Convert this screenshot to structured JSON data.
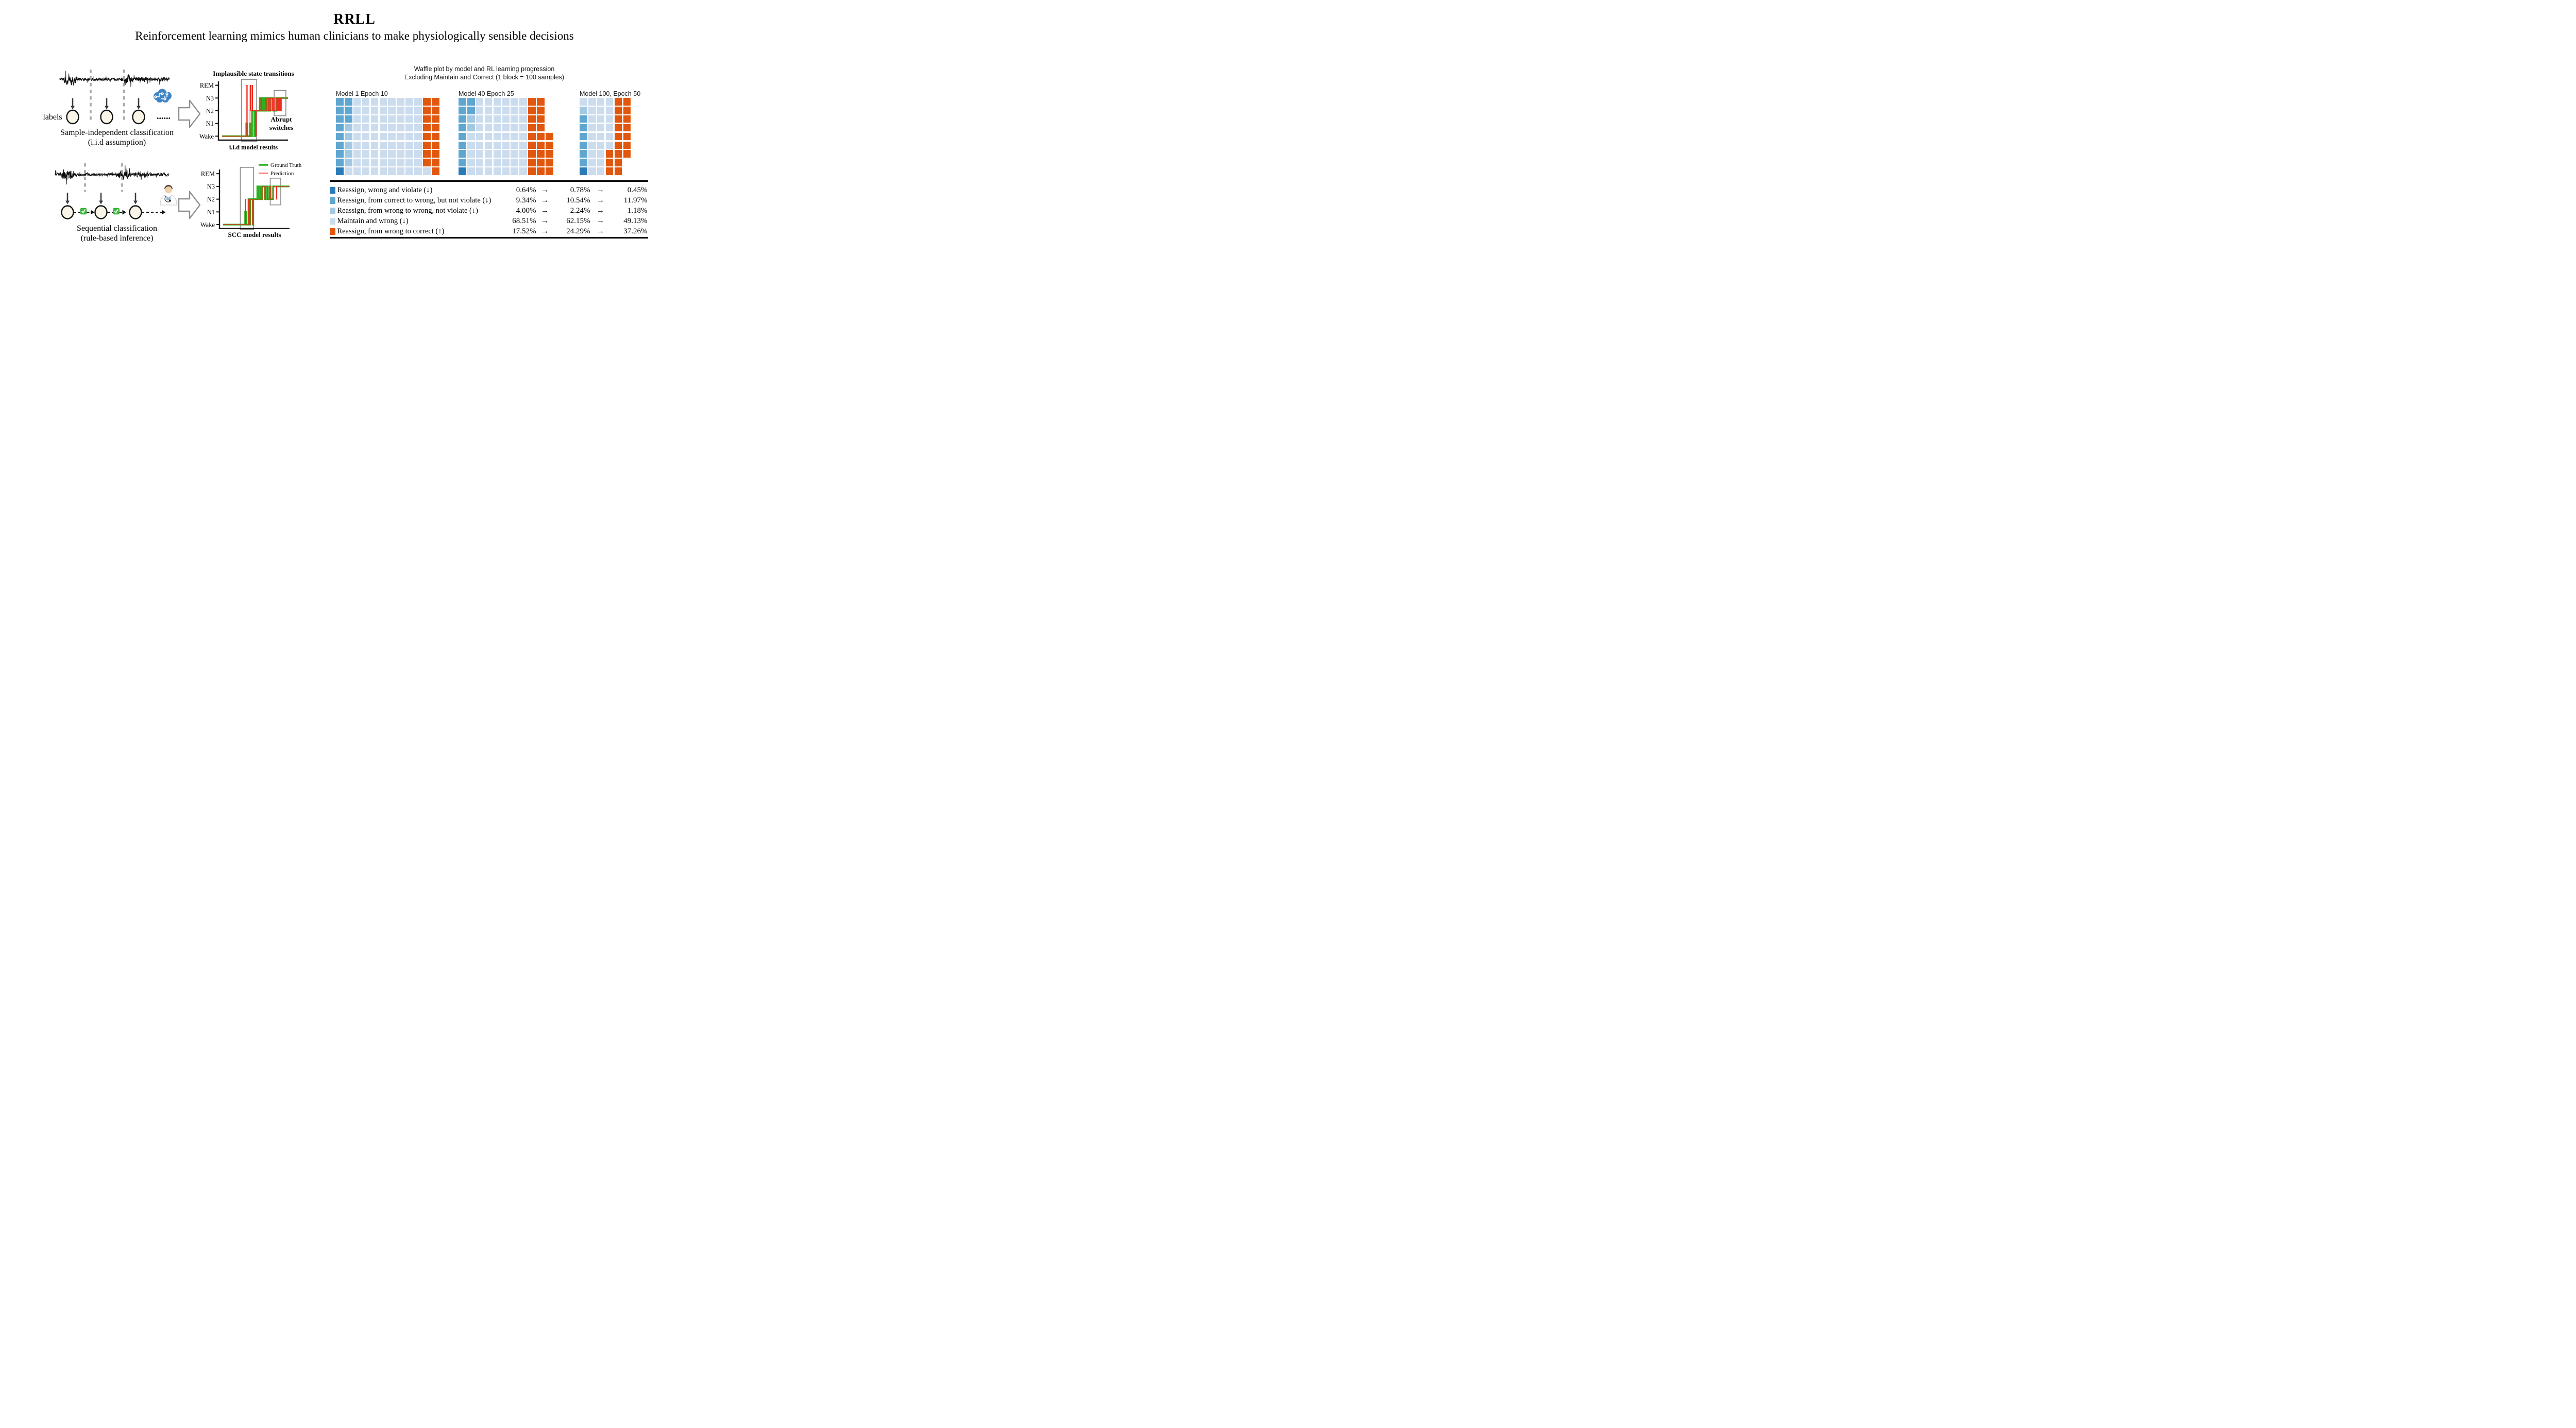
{
  "header": {
    "title": "RRLL",
    "subtitle": "Reinforcement learning mimics human clinicians to make physiologically sensible decisions"
  },
  "pipeline": {
    "iid": {
      "labels_text": "labels",
      "ellipsis": "......",
      "caption": [
        "Sample-independent classification",
        "(i.i.d assumption)"
      ]
    },
    "scc": {
      "caption": [
        "Sequential classification",
        "(rule-based inference)"
      ]
    },
    "eeg": [
      {
        "id": "eeg-iid",
        "seed": 7,
        "bursts": [
          {
            "from": 0.04,
            "to": 0.17,
            "amp": 3.4
          },
          {
            "from": 0.56,
            "to": 0.67,
            "amp": 2.9
          },
          {
            "from": 0.67,
            "to": 0.82,
            "amp": 2.0
          },
          {
            "from": 0.82,
            "to": 1.0,
            "amp": 1.5
          }
        ]
      },
      {
        "id": "eeg-scc",
        "seed": 13,
        "bursts": [
          {
            "from": 0.04,
            "to": 0.16,
            "amp": 3.4
          },
          {
            "from": 0.54,
            "to": 0.67,
            "amp": 2.8
          },
          {
            "from": 0.67,
            "to": 0.84,
            "amp": 1.7
          }
        ]
      }
    ]
  },
  "chart_data": [
    {
      "type": "line",
      "id": "hypno-iid",
      "title": "Implausible state transitions",
      "xlabel": "i.i.d model results",
      "annotation": [
        "Abrupt",
        "switches"
      ],
      "stages": [
        "Wake",
        "N1",
        "N2",
        "N3",
        "REM"
      ],
      "grid": false,
      "series": [
        {
          "name": "Ground Truth",
          "color": "#2cb01e",
          "width": 3.2,
          "points": [
            [
              0,
              0
            ],
            [
              36.7,
              0
            ],
            [
              36.7,
              1
            ],
            [
              38.4,
              1
            ],
            [
              38.4,
              0
            ],
            [
              42.3,
              0
            ],
            [
              42.3,
              1
            ],
            [
              43.9,
              1
            ],
            [
              43.9,
              0
            ],
            [
              45.5,
              0
            ],
            [
              45.5,
              2
            ],
            [
              48.8,
              2
            ],
            [
              48.8,
              0
            ],
            [
              50.3,
              0
            ],
            [
              50.3,
              2
            ],
            [
              57.3,
              2
            ],
            [
              57.3,
              3
            ],
            [
              59.2,
              3
            ],
            [
              59.2,
              2
            ],
            [
              60.2,
              2
            ],
            [
              60.2,
              3
            ],
            [
              61.2,
              3
            ],
            [
              61.2,
              2
            ],
            [
              62,
              2
            ],
            [
              62,
              3
            ],
            [
              64.8,
              3
            ],
            [
              64.8,
              2
            ],
            [
              65.6,
              2
            ],
            [
              65.6,
              3
            ],
            [
              66.5,
              3
            ],
            [
              66.5,
              2
            ],
            [
              67.3,
              2
            ],
            [
              67.3,
              3
            ],
            [
              70,
              3
            ],
            [
              70,
              2
            ],
            [
              71,
              2
            ],
            [
              71,
              3
            ],
            [
              72.2,
              3
            ],
            [
              72.2,
              2
            ],
            [
              73,
              2
            ],
            [
              73,
              3
            ],
            [
              77.7,
              3
            ],
            [
              77.7,
              2
            ],
            [
              82,
              2
            ],
            [
              82,
              3
            ],
            [
              100,
              3
            ]
          ]
        },
        {
          "name": "Prediction",
          "color": "#f02e20",
          "width": 1.3,
          "points": [
            [
              0,
              0
            ],
            [
              36.8,
              0
            ],
            [
              36.8,
              4
            ],
            [
              38.3,
              4
            ],
            [
              38.3,
              0
            ],
            [
              42.4,
              0
            ],
            [
              42.4,
              4
            ],
            [
              43.4,
              4
            ],
            [
              43.4,
              2
            ],
            [
              45.4,
              2
            ],
            [
              45.4,
              4
            ],
            [
              46.4,
              4
            ],
            [
              46.4,
              2
            ],
            [
              50.7,
              2
            ],
            [
              50.7,
              0
            ],
            [
              51.8,
              0
            ],
            [
              51.8,
              2
            ],
            [
              58.8,
              2
            ],
            [
              58.8,
              3
            ],
            [
              60,
              3
            ],
            [
              60,
              2
            ],
            [
              65.8,
              2
            ],
            [
              65.8,
              3
            ],
            [
              67,
              3
            ],
            [
              67,
              2
            ],
            [
              70.3,
              2
            ],
            [
              70.3,
              3
            ],
            [
              71.3,
              3
            ],
            [
              71.3,
              2
            ],
            [
              73.6,
              2
            ],
            [
              73.6,
              3
            ],
            [
              74.6,
              3
            ],
            [
              74.6,
              2
            ],
            [
              76.4,
              2
            ],
            [
              76.4,
              3
            ],
            [
              77.4,
              3
            ],
            [
              77.4,
              2
            ],
            [
              79.5,
              2
            ],
            [
              79.5,
              3
            ],
            [
              82.8,
              3
            ],
            [
              82.8,
              2
            ],
            [
              83.6,
              2
            ],
            [
              83.6,
              3
            ],
            [
              84.4,
              3
            ],
            [
              84.4,
              2
            ],
            [
              85.2,
              2
            ],
            [
              85.2,
              3
            ],
            [
              86,
              3
            ],
            [
              86,
              2
            ],
            [
              86.8,
              2
            ],
            [
              86.8,
              3
            ],
            [
              87.6,
              3
            ],
            [
              87.6,
              2
            ],
            [
              88.4,
              2
            ],
            [
              88.4,
              3
            ],
            [
              89.2,
              3
            ],
            [
              89.2,
              2
            ],
            [
              90,
              2
            ],
            [
              90,
              3
            ],
            [
              100,
              3
            ]
          ]
        }
      ],
      "highlight_boxes": [
        {
          "x0": 29.5,
          "x1": 52.5,
          "lv0": -0.4,
          "lv1": 4.45
        },
        {
          "x0": 79.0,
          "x1": 96.8,
          "lv0": 1.6,
          "lv1": 3.6
        }
      ]
    },
    {
      "type": "line",
      "id": "hypno-scc",
      "title": "",
      "xlabel": "SCC model results",
      "stages": [
        "Wake",
        "N1",
        "N2",
        "N3",
        "REM"
      ],
      "grid": false,
      "legend_position": "upper-right",
      "series": [
        {
          "name": "Ground Truth",
          "color": "#2cb01e",
          "width": 3.2,
          "points": [
            [
              0,
              0
            ],
            [
              33.2,
              0
            ],
            [
              33.2,
              1
            ],
            [
              34.6,
              1
            ],
            [
              34.6,
              0
            ],
            [
              38.2,
              0
            ],
            [
              38.2,
              2
            ],
            [
              39.6,
              2
            ],
            [
              39.6,
              0
            ],
            [
              40.6,
              0
            ],
            [
              40.6,
              2
            ],
            [
              44.4,
              2
            ],
            [
              44.4,
              0
            ],
            [
              45.4,
              0
            ],
            [
              45.4,
              2
            ],
            [
              51.5,
              2
            ],
            [
              51.5,
              3
            ],
            [
              53,
              3
            ],
            [
              53,
              2
            ],
            [
              53.8,
              2
            ],
            [
              53.8,
              3
            ],
            [
              56.5,
              3
            ],
            [
              56.5,
              2
            ],
            [
              57.3,
              2
            ],
            [
              57.3,
              3
            ],
            [
              58.2,
              3
            ],
            [
              58.2,
              2
            ],
            [
              59,
              2
            ],
            [
              59,
              3
            ],
            [
              62.8,
              3
            ],
            [
              62.8,
              2
            ],
            [
              63.6,
              2
            ],
            [
              63.6,
              3
            ],
            [
              66.4,
              3
            ],
            [
              66.4,
              2
            ],
            [
              69.4,
              2
            ],
            [
              69.4,
              3
            ],
            [
              71.5,
              3
            ],
            [
              71.5,
              2
            ],
            [
              75.2,
              2
            ],
            [
              75.2,
              3
            ],
            [
              100,
              3
            ]
          ]
        },
        {
          "name": "Prediction",
          "color": "#f02e20",
          "width": 1.3,
          "points": [
            [
              0,
              0
            ],
            [
              33.2,
              0
            ],
            [
              33.2,
              2
            ],
            [
              34.2,
              2
            ],
            [
              34.2,
              0
            ],
            [
              38.2,
              0
            ],
            [
              38.2,
              2
            ],
            [
              39.6,
              2
            ],
            [
              39.6,
              0
            ],
            [
              40.6,
              0
            ],
            [
              40.6,
              2
            ],
            [
              44.4,
              2
            ],
            [
              44.4,
              0
            ],
            [
              45.4,
              0
            ],
            [
              45.4,
              2
            ],
            [
              59.8,
              2
            ],
            [
              59.8,
              3
            ],
            [
              62.8,
              3
            ],
            [
              62.8,
              2
            ],
            [
              63.6,
              2
            ],
            [
              63.6,
              3
            ],
            [
              66.4,
              3
            ],
            [
              66.4,
              2
            ],
            [
              69.4,
              2
            ],
            [
              69.4,
              3
            ],
            [
              71.5,
              3
            ],
            [
              71.5,
              2
            ],
            [
              75.2,
              2
            ],
            [
              75.2,
              3
            ],
            [
              80.2,
              3
            ],
            [
              80.2,
              2
            ],
            [
              81,
              2
            ],
            [
              81,
              3
            ],
            [
              100,
              3
            ]
          ]
        }
      ],
      "highlight_boxes": [
        {
          "x0": 25.9,
          "x1": 45.9,
          "lv0": -0.4,
          "lv1": 4.5
        },
        {
          "x0": 70.9,
          "x1": 86.8,
          "lv0": 1.55,
          "lv1": 3.65
        }
      ]
    },
    {
      "type": "waffle-group",
      "title": [
        "Waffle plot by model and RL learning progression",
        "Excluding Maintain and Correct (1 block = 100 samples)"
      ],
      "colors": {
        "D": "#2c7bb9",
        "M": "#5fa6d0",
        "L": "#a3c9e2",
        "P": "#cbdcee",
        "O": "#e2570e"
      },
      "plots": [
        {
          "title": "Model 1 Epoch 10",
          "rows": [
            "MMPPPPPPPPOO",
            "MMPPPPPPPPOO",
            "MMPPPPPPPPOO",
            "MLPPPPPPPPOO",
            "MLPPPPPPPPOO",
            "MLPPPPPPPPOO",
            "MLPPPPPPPPOO",
            "MLPPPPPPPPOO",
            "DPPPPPPPPPPO"
          ]
        },
        {
          "title": "Model 40 Epoch 25",
          "rows": [
            "MMPPPPPPOO",
            "MMPPPPPPOO",
            "MLPPPPPPOO",
            "MLPPPPPPOO",
            "MPPPPPPPOOO",
            "MPPPPPPPOOO",
            "MPPPPPPPOOO",
            "MPPPPPPPOOO",
            "DPPPPPPPOOO"
          ]
        },
        {
          "title": "Model 100, Epoch 50",
          "rows": [
            "PPPPOO",
            "LPPPOO",
            "MPPPOO",
            "MPPPOO",
            "MPPPOO",
            "MPPPOO",
            "MPPOOO",
            "MPPOO",
            "DPPOO"
          ]
        }
      ],
      "categories": [
        {
          "key": "D",
          "label": "Reassign, wrong and violate (↓)",
          "values": [
            "0.64%",
            "0.78%",
            "0.45%"
          ]
        },
        {
          "key": "M",
          "label": "Reassign, from correct to wrong, but not violate (↓)",
          "values": [
            "9.34%",
            "10.54%",
            "11.97%"
          ]
        },
        {
          "key": "L",
          "label": "Reassign, from wrong to wrong, not violate (↓)",
          "values": [
            "4.00%",
            "2.24%",
            "1.18%"
          ]
        },
        {
          "key": "P",
          "label": "Maintain and wrong (↓)",
          "values": [
            "68.51%",
            "62.15%",
            "49.13%"
          ]
        },
        {
          "key": "O",
          "label": "Reassign, from wrong to correct (↑)",
          "values": [
            "17.52%",
            "24.29%",
            "37.26%"
          ]
        }
      ],
      "arrow": "→"
    }
  ]
}
